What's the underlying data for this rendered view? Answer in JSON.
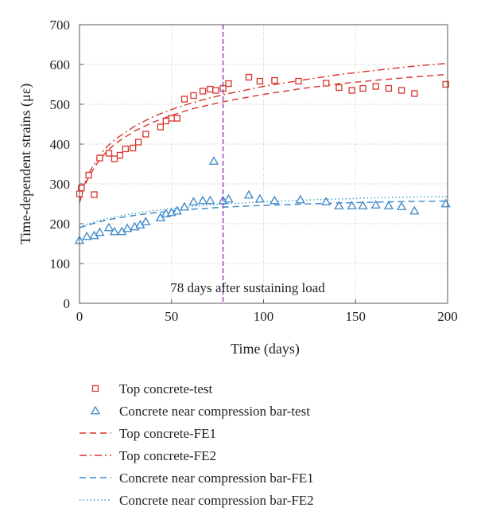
{
  "chart_data": {
    "type": "scatter",
    "xlabel": "Time (days)",
    "ylabel": "Time-dependent strains (με)",
    "xlim": [
      0,
      200
    ],
    "ylim": [
      0,
      700
    ],
    "x_ticks": [
      0,
      50,
      100,
      150,
      200
    ],
    "y_ticks": [
      0,
      100,
      200,
      300,
      400,
      500,
      600,
      700
    ],
    "grid": "dotted",
    "legend_placement": "bottom",
    "annotation": {
      "text": "78 days after sustaining load",
      "x": 78,
      "color": "#9b3fbf"
    },
    "series": [
      {
        "name": "Top concrete-test",
        "kind": "markers",
        "marker": "square",
        "color": "#d9342b",
        "points": [
          [
            0,
            275
          ],
          [
            1,
            290
          ],
          [
            5,
            322
          ],
          [
            8,
            273
          ],
          [
            11,
            365
          ],
          [
            16,
            377
          ],
          [
            19,
            363
          ],
          [
            22,
            372
          ],
          [
            25,
            388
          ],
          [
            29,
            390
          ],
          [
            32,
            405
          ],
          [
            36,
            425
          ],
          [
            44,
            443
          ],
          [
            47,
            458
          ],
          [
            50,
            465
          ],
          [
            53,
            465
          ],
          [
            57,
            513
          ],
          [
            62,
            522
          ],
          [
            67,
            533
          ],
          [
            71,
            538
          ],
          [
            74,
            535
          ],
          [
            78,
            540
          ],
          [
            81,
            552
          ],
          [
            92,
            568
          ],
          [
            98,
            558
          ],
          [
            106,
            560
          ],
          [
            119,
            558
          ],
          [
            134,
            553
          ],
          [
            141,
            542
          ],
          [
            148,
            535
          ],
          [
            154,
            540
          ],
          [
            161,
            545
          ],
          [
            168,
            540
          ],
          [
            175,
            535
          ],
          [
            182,
            527
          ],
          [
            199,
            550
          ]
        ]
      },
      {
        "name": "Concrete near compression bar-test",
        "kind": "markers",
        "marker": "triangle",
        "color": "#3a86c8",
        "points": [
          [
            0,
            158
          ],
          [
            4,
            168
          ],
          [
            8,
            170
          ],
          [
            11,
            178
          ],
          [
            16,
            190
          ],
          [
            19,
            180
          ],
          [
            23,
            180
          ],
          [
            26,
            188
          ],
          [
            30,
            192
          ],
          [
            33,
            197
          ],
          [
            36,
            205
          ],
          [
            44,
            215
          ],
          [
            47,
            225
          ],
          [
            50,
            228
          ],
          [
            53,
            232
          ],
          [
            57,
            242
          ],
          [
            62,
            255
          ],
          [
            67,
            258
          ],
          [
            71,
            258
          ],
          [
            73,
            357
          ],
          [
            78,
            258
          ],
          [
            81,
            262
          ],
          [
            92,
            272
          ],
          [
            98,
            262
          ],
          [
            106,
            258
          ],
          [
            120,
            260
          ],
          [
            134,
            255
          ],
          [
            141,
            245
          ],
          [
            148,
            245
          ],
          [
            154,
            245
          ],
          [
            161,
            247
          ],
          [
            168,
            245
          ],
          [
            175,
            243
          ],
          [
            182,
            232
          ],
          [
            199,
            250
          ]
        ]
      },
      {
        "name": "Top concrete-FE1",
        "kind": "line",
        "dash": "dashed",
        "color": "#d9342b",
        "points": [
          [
            0,
            252
          ],
          [
            2,
            285
          ],
          [
            5,
            318
          ],
          [
            10,
            355
          ],
          [
            15,
            383
          ],
          [
            20,
            403
          ],
          [
            30,
            433
          ],
          [
            40,
            455
          ],
          [
            50,
            472
          ],
          [
            60,
            487
          ],
          [
            70,
            498
          ],
          [
            80,
            508
          ],
          [
            100,
            525
          ],
          [
            120,
            539
          ],
          [
            140,
            551
          ],
          [
            160,
            560
          ],
          [
            180,
            568
          ],
          [
            200,
            575
          ]
        ]
      },
      {
        "name": "Top concrete-FE2",
        "kind": "line",
        "dash": "dashdot",
        "color": "#d9342b",
        "points": [
          [
            0,
            255
          ],
          [
            2,
            290
          ],
          [
            5,
            326
          ],
          [
            10,
            366
          ],
          [
            15,
            394
          ],
          [
            20,
            414
          ],
          [
            30,
            445
          ],
          [
            40,
            469
          ],
          [
            50,
            487
          ],
          [
            60,
            502
          ],
          [
            70,
            515
          ],
          [
            80,
            526
          ],
          [
            100,
            545
          ],
          [
            120,
            560
          ],
          [
            140,
            574
          ],
          [
            160,
            585
          ],
          [
            180,
            595
          ],
          [
            200,
            603
          ]
        ]
      },
      {
        "name": "Concrete near compression bar-FE1",
        "kind": "line",
        "dash": "dashed",
        "color": "#3a86c8",
        "points": [
          [
            0,
            190
          ],
          [
            5,
            197
          ],
          [
            10,
            204
          ],
          [
            20,
            214
          ],
          [
            30,
            221
          ],
          [
            40,
            227
          ],
          [
            50,
            232
          ],
          [
            60,
            236
          ],
          [
            70,
            239
          ],
          [
            80,
            242
          ],
          [
            100,
            246
          ],
          [
            120,
            249
          ],
          [
            140,
            252
          ],
          [
            160,
            254
          ],
          [
            180,
            256
          ],
          [
            200,
            257
          ]
        ]
      },
      {
        "name": "Concrete near compression bar-FE2",
        "kind": "line",
        "dash": "dotted",
        "color": "#3a9fc0",
        "points": [
          [
            0,
            192
          ],
          [
            5,
            200
          ],
          [
            10,
            207
          ],
          [
            20,
            218
          ],
          [
            30,
            226
          ],
          [
            40,
            233
          ],
          [
            50,
            238
          ],
          [
            60,
            243
          ],
          [
            70,
            247
          ],
          [
            80,
            250
          ],
          [
            100,
            255
          ],
          [
            120,
            259
          ],
          [
            140,
            262
          ],
          [
            160,
            265
          ],
          [
            180,
            267
          ],
          [
            200,
            268
          ]
        ]
      }
    ]
  }
}
